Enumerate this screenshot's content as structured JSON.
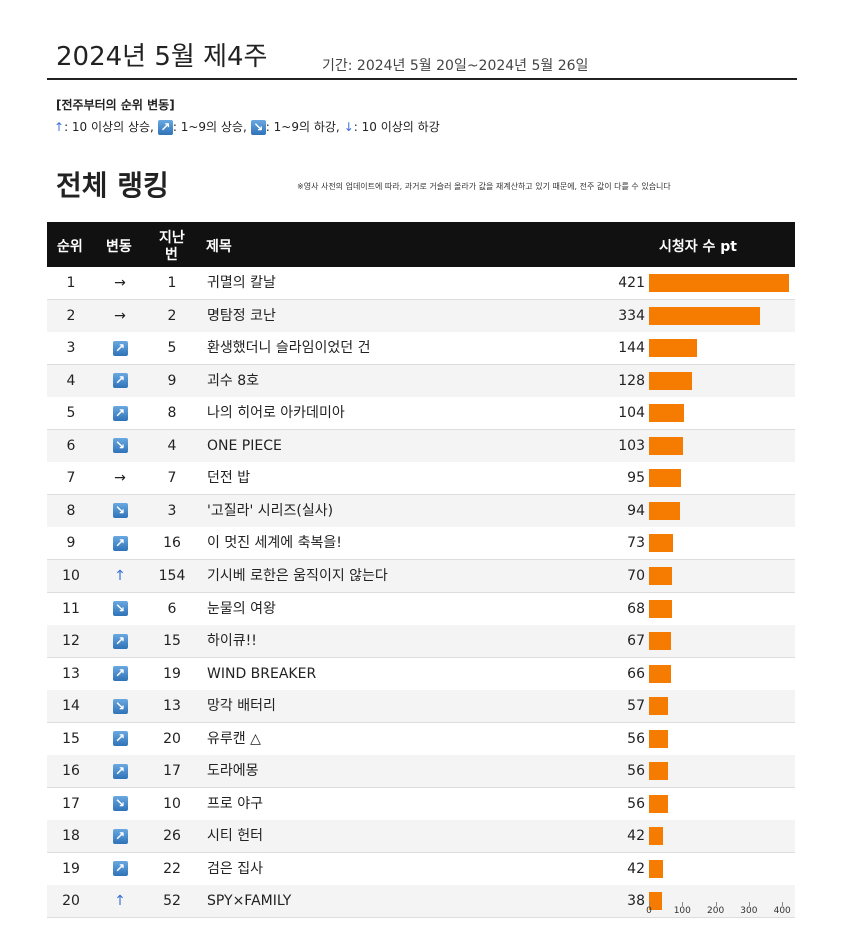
{
  "header": {
    "title": "2024년 5월 제4주",
    "period": "기간: 2024년 5월 20일~2024년 5월 26일"
  },
  "legend": {
    "heading": "[전주부터의 순위 변동]",
    "items": [
      {
        "symbol": "↑",
        "text": ": 10 이상의 상승,"
      },
      {
        "symbol": "↗",
        "text": ": 1~9의 상승,"
      },
      {
        "symbol": "↘",
        "text": ": 1~9의 하강,"
      },
      {
        "symbol": "↓",
        "text": ": 10 이상의 하강"
      }
    ]
  },
  "section": {
    "title": "전체 랭킹",
    "note": "※영사 사전의 업데이트에 따라, 과거로 거슬러 올라가 값을 재계산하고 있기 때문에, 전주 값이 다를 수 있습니다"
  },
  "table": {
    "headers": {
      "rank": "순위",
      "change": "변동",
      "last": [
        "지난",
        "번"
      ],
      "title": "제목",
      "value": "시청자 수 pt"
    },
    "rows": [
      {
        "rank": 1,
        "change": "→",
        "last": 1,
        "title": "귀멸의 칼날",
        "value": 421
      },
      {
        "rank": 2,
        "change": "→",
        "last": 2,
        "title": "명탐정 코난",
        "value": 334
      },
      {
        "rank": 3,
        "change": "↗",
        "last": 5,
        "title": "환생했더니 슬라임이었던 건",
        "value": 144
      },
      {
        "rank": 4,
        "change": "↗",
        "last": 9,
        "title": "괴수 8호",
        "value": 128
      },
      {
        "rank": 5,
        "change": "↗",
        "last": 8,
        "title": "나의 히어로 아카데미아",
        "value": 104
      },
      {
        "rank": 6,
        "change": "↘",
        "last": 4,
        "title": "ONE PIECE",
        "value": 103
      },
      {
        "rank": 7,
        "change": "→",
        "last": 7,
        "title": "던전 밥",
        "value": 95
      },
      {
        "rank": 8,
        "change": "↘",
        "last": 3,
        "title": "'고질라' 시리즈(실사)",
        "value": 94
      },
      {
        "rank": 9,
        "change": "↗",
        "last": 16,
        "title": "이 멋진 세계에 축복을!",
        "value": 73
      },
      {
        "rank": 10,
        "change": "↑",
        "last": 154,
        "title": "기시베 로한은 움직이지 않는다",
        "value": 70
      },
      {
        "rank": 11,
        "change": "↘",
        "last": 6,
        "title": "눈물의 여왕",
        "value": 68
      },
      {
        "rank": 12,
        "change": "↗",
        "last": 15,
        "title": "하이큐!!",
        "value": 67
      },
      {
        "rank": 13,
        "change": "↗",
        "last": 19,
        "title": "WIND BREAKER",
        "value": 66
      },
      {
        "rank": 14,
        "change": "↘",
        "last": 13,
        "title": "망각 배터리",
        "value": 57
      },
      {
        "rank": 15,
        "change": "↗",
        "last": 20,
        "title": "유루캔 △",
        "value": 56
      },
      {
        "rank": 16,
        "change": "↗",
        "last": 17,
        "title": "도라에몽",
        "value": 56
      },
      {
        "rank": 17,
        "change": "↘",
        "last": 10,
        "title": "프로 야구",
        "value": 56
      },
      {
        "rank": 18,
        "change": "↗",
        "last": 26,
        "title": "시티 헌터",
        "value": 42
      },
      {
        "rank": 19,
        "change": "↗",
        "last": 22,
        "title": "검은 집사",
        "value": 42
      },
      {
        "rank": 20,
        "change": "↑",
        "last": 52,
        "title": "SPY×FAMILY",
        "value": 38
      }
    ],
    "xticks": [
      0,
      100,
      200,
      300,
      400
    ]
  }
}
